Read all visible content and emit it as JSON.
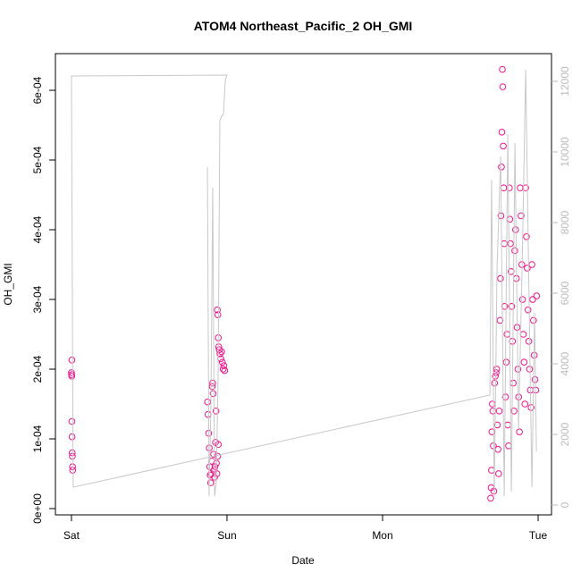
{
  "chart_data": {
    "type": "scatter",
    "title": "ATOM4 Northeast_Pacific_2 OH_GMI",
    "x_label": "Date",
    "y_label": "OH_GMI",
    "xlim": [
      -0.103,
      3.086
    ],
    "xticks": [
      {
        "value": 0,
        "label": "Sat"
      },
      {
        "value": 1,
        "label": "Sun"
      },
      {
        "value": 2,
        "label": "Mon"
      },
      {
        "value": 3,
        "label": "Tue"
      }
    ],
    "ylim": [
      -9e-06,
      0.0006526
    ],
    "yticks": [
      {
        "value": 0,
        "label": "0e+00"
      },
      {
        "value": 0.0001,
        "label": "1e-04"
      },
      {
        "value": 0.0002,
        "label": "2e-04"
      },
      {
        "value": 0.0003,
        "label": "3e-04"
      },
      {
        "value": 0.0004,
        "label": "4e-04"
      },
      {
        "value": 0.0005,
        "label": "5e-04"
      },
      {
        "value": 0.0006,
        "label": "6e-04"
      }
    ],
    "y2lim": [
      -278,
      12785
    ],
    "y2ticks": [
      0,
      2000,
      4000,
      6000,
      8000,
      10000,
      12000
    ],
    "series": [
      {
        "color": "#f0148c",
        "x": [
          0.0,
          0.001,
          0.002,
          0.003,
          0.003,
          0.004,
          0.005,
          0.006,
          0.007,
          0.008,
          0.875,
          0.878,
          0.882,
          0.886,
          0.889,
          0.892,
          0.895,
          0.898,
          0.902,
          0.905,
          0.908,
          0.911,
          0.914,
          0.917,
          0.92,
          0.923,
          0.926,
          0.929,
          0.932,
          0.935,
          0.938,
          0.941,
          0.944,
          0.947,
          0.95,
          0.955,
          0.96,
          0.965,
          0.97,
          0.975,
          0.98,
          0.985,
          0.94,
          0.944,
          2.695,
          2.698,
          2.7,
          2.703,
          2.706,
          2.709,
          2.712,
          2.715,
          2.72,
          2.725,
          2.73,
          2.733,
          2.738,
          2.742,
          2.746,
          2.75,
          2.755,
          2.758,
          2.761,
          2.764,
          2.767,
          2.77,
          2.773,
          2.776,
          2.779,
          2.782,
          2.785,
          2.79,
          2.795,
          2.8,
          2.805,
          2.81,
          2.815,
          2.818,
          2.822,
          2.826,
          2.83,
          2.835,
          2.84,
          2.845,
          2.85,
          2.855,
          2.86,
          2.865,
          2.87,
          2.875,
          2.88,
          2.885,
          2.89,
          2.895,
          2.9,
          2.905,
          2.91,
          2.915,
          2.92,
          2.925,
          2.93,
          2.935,
          2.94,
          2.945,
          2.95,
          2.955,
          2.96,
          2.965,
          2.97,
          2.975,
          2.98,
          2.985,
          2.99
        ],
        "values": [
          0.000195,
          0.000192,
          0.00019,
          0.000213,
          0.000125,
          0.000103,
          8e-05,
          7.5e-05,
          6e-05,
          5.5e-05,
          0.000153,
          0.000135,
          0.000108,
          8.7e-05,
          6e-05,
          4.8e-05,
          3.7e-05,
          5e-05,
          6.8e-05,
          0.000175,
          0.00018,
          0.000165,
          7.8e-05,
          5.5e-05,
          4.5e-05,
          6e-05,
          9.5e-05,
          0.00014,
          6.5e-05,
          5e-05,
          0.000285,
          0.000278,
          0.000245,
          0.000232,
          0.000228,
          0.000222,
          0.000215,
          0.000225,
          0.00021,
          0.0002,
          0.000205,
          0.000198,
          7.5e-05,
          9.2e-05,
          1.5e-05,
          3e-05,
          5.5e-05,
          0.00011,
          0.00015,
          0.00014,
          9e-05,
          2.5e-05,
          0.00018,
          0.00019,
          0.000195,
          0.0002,
          0.00012,
          8.5e-05,
          5e-05,
          0.00014,
          0.00027,
          0.00033,
          0.00042,
          0.00049,
          0.00054,
          0.00063,
          0.000605,
          0.00052,
          0.00046,
          0.00038,
          0.00029,
          0.00016,
          0.00021,
          0.00025,
          0.00012,
          9e-05,
          0.00046,
          0.000415,
          0.00038,
          0.00034,
          0.00029,
          0.00024,
          0.00018,
          0.00014,
          0.00037,
          0.0004,
          0.00033,
          0.00026,
          0.0002,
          0.00016,
          0.00011,
          0.00046,
          0.00042,
          0.00035,
          0.0003,
          0.00025,
          0.00021,
          0.00015,
          0.00046,
          0.00039,
          0.000345,
          0.000285,
          0.00024,
          0.0002,
          0.00017,
          0.000145,
          0.00035,
          0.0003,
          0.00027,
          0.00022,
          0.000185,
          0.00017,
          0.000305
        ]
      },
      {
        "color": "#c8c8c8",
        "axis": "y2",
        "x": [
          0.874,
          0.885,
          0.897,
          0.908,
          0.92,
          0.931,
          0.943,
          0.954,
          0.966,
          0.977,
          0.989,
          1.0,
          0.0,
          0.011,
          2.69,
          2.701,
          2.718,
          2.736,
          2.759,
          2.782,
          2.805,
          2.828,
          2.851,
          2.874,
          2.897,
          2.92,
          2.943,
          2.96,
          2.977,
          2.989
        ],
        "values": [
          9570,
          253,
          2911,
          8987,
          253,
          633,
          3671,
          10886,
          11013,
          11063,
          12025,
          12177,
          12152,
          506,
          3114,
          9215,
          253,
          6709,
          9873,
          253,
          10506,
          380,
          10253,
          2152,
          6709,
          12329,
          5443,
          506,
          5443,
          1519
        ]
      }
    ]
  }
}
